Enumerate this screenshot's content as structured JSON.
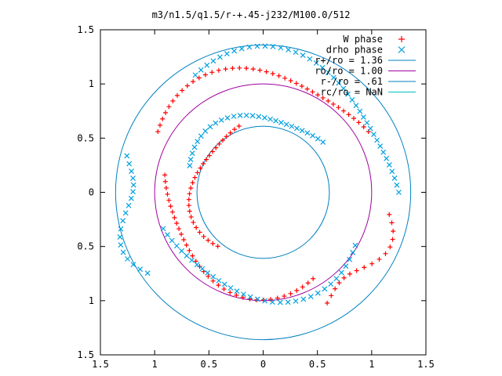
{
  "chart_data": {
    "type": "scatter",
    "title": "m3/n1.5/q1.5/r-+.45-j232/M100.0/512",
    "xlabel": "",
    "ylabel": "",
    "xlim": [
      -1.5,
      1.5
    ],
    "ylim": [
      -1.5,
      1.5
    ],
    "xtick_values": [
      -1.5,
      -1,
      -0.5,
      0,
      0.5,
      1,
      1.5
    ],
    "xtick_labels": [
      "1.5",
      "1",
      "0.5",
      "0",
      "0.5",
      "1",
      "1.5"
    ],
    "ytick_values": [
      1.5,
      1,
      0.5,
      0,
      -0.5,
      -1,
      -1.5
    ],
    "ytick_labels": [
      "1.5",
      "1",
      "0.5",
      "0",
      "0.5",
      "1",
      "1.5"
    ],
    "grid": false,
    "legend_placement": "top-right",
    "series": [
      {
        "name": "W phase",
        "marker": "+",
        "color": "#ff0000",
        "arms": [
          [
            1.12,
            30,
            150,
            40
          ],
          [
            0.92,
            170,
            300,
            36
          ],
          [
            0.65,
            110,
            230,
            28
          ],
          [
            1.18,
            300,
            350,
            16
          ]
        ]
      },
      {
        "name": "drho phase",
        "marker": "x",
        "color": "#00a0e0",
        "arms": [
          [
            1.25,
            0,
            120,
            40
          ],
          [
            0.98,
            200,
            330,
            34
          ],
          [
            0.72,
            40,
            160,
            28
          ],
          [
            1.3,
            165,
            215,
            18
          ]
        ]
      }
    ],
    "circles": [
      {
        "name": "r+/ro = 1.36",
        "radius": 1.36,
        "color": "#0080c0"
      },
      {
        "name": "ro/ro = 1.00",
        "radius": 1.0,
        "color": "#a000a0"
      },
      {
        "name": "r-/ro = .61",
        "radius": 0.61,
        "color": "#0080c0"
      },
      {
        "name": "rc/ro = NaN",
        "radius": null,
        "color": "#00c0c0"
      }
    ]
  }
}
